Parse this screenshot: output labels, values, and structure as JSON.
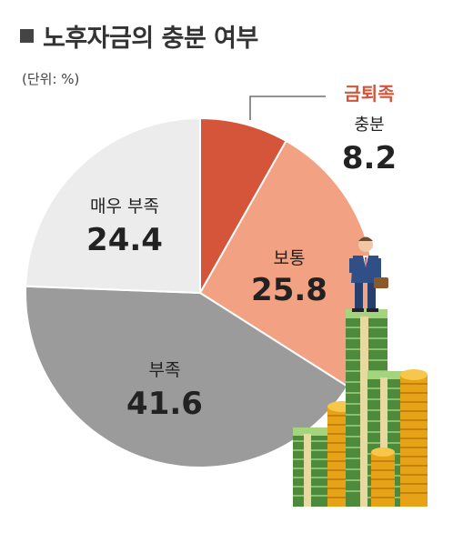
{
  "header": {
    "title": "노후자금의 충분 여부",
    "unit": "(단위: %)"
  },
  "chart_data": {
    "type": "pie",
    "title": "노후자금의 충분 여부",
    "unit": "%",
    "slices": [
      {
        "label": "충분",
        "value": 8.2,
        "color": "#d4553a",
        "tag": "금퇴족"
      },
      {
        "label": "보통",
        "value": 25.8,
        "color": "#f3a183"
      },
      {
        "label": "부족",
        "value": 41.6,
        "color": "#9b9b9b"
      },
      {
        "label": "매우 부족",
        "value": 24.4,
        "color": "#ececec"
      }
    ],
    "callout_tag_color": "#d4553a"
  }
}
